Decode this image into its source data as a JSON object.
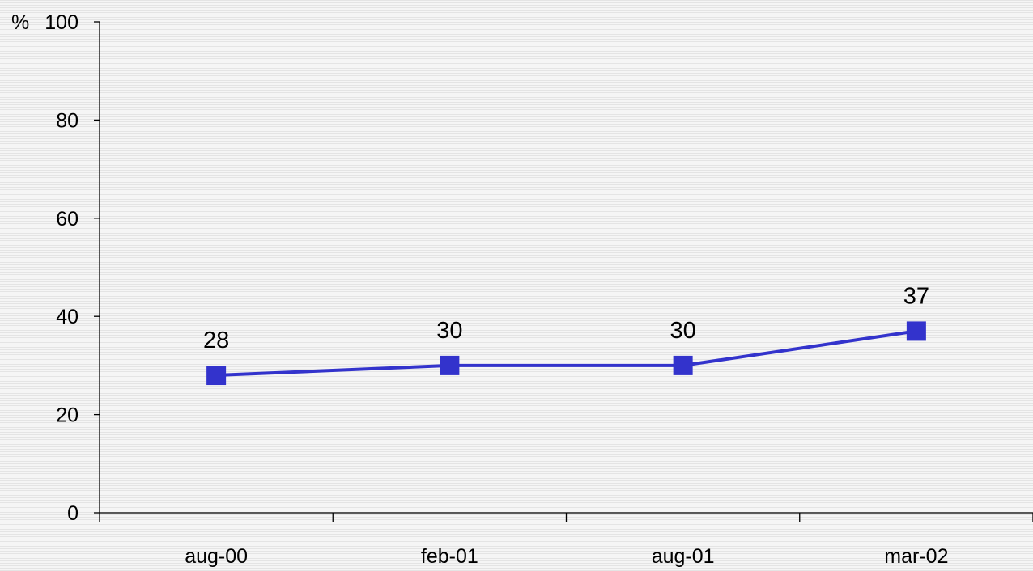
{
  "chart_data": {
    "type": "line",
    "unit": "%",
    "categories": [
      "aug-00",
      "feb-01",
      "aug-01",
      "mar-02"
    ],
    "series": [
      {
        "values": [
          28,
          30,
          30,
          37
        ],
        "color": "#3333cc",
        "marker": "square"
      }
    ],
    "data_labels": [
      "28",
      "30",
      "30",
      "37"
    ],
    "ylim": [
      0,
      100
    ],
    "yticks": [
      "0",
      "20",
      "40",
      "60",
      "80",
      "100"
    ],
    "grid": false,
    "legend": "none",
    "title": "",
    "xlabel": "",
    "ylabel": ""
  }
}
